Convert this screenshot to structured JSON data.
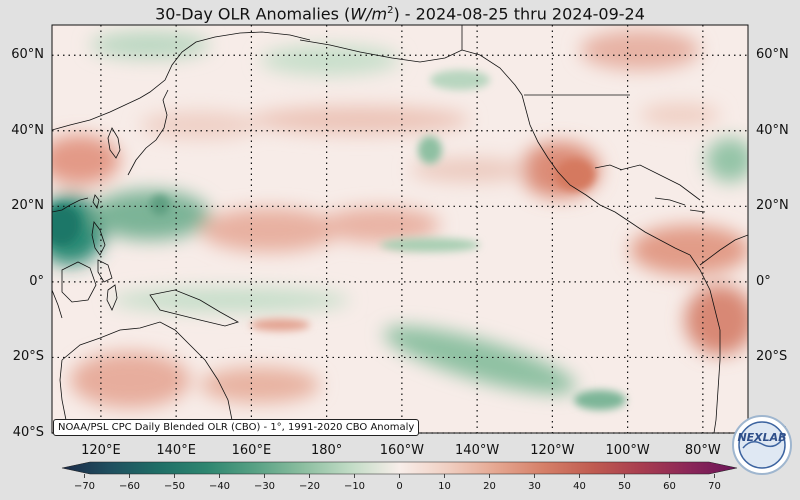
{
  "title": {
    "prefix": "30-Day OLR Anomalies (",
    "unit_base": "W/m",
    "unit_exp": "2",
    "suffix": ") - 2024-08-25 thru 2024-09-24"
  },
  "lat_labels": [
    "60°N",
    "40°N",
    "20°N",
    "0°",
    "20°S",
    "40°S"
  ],
  "lon_labels": [
    "120°E",
    "140°E",
    "160°E",
    "180°",
    "160°W",
    "140°W",
    "120°W",
    "100°W",
    "80°W"
  ],
  "source_note": "NOAA/PSL CPC Daily Blended OLR (CBO) - 1°, 1991-2020 CBO Anomaly",
  "logo_text": "NEXLAB",
  "colorbar": {
    "ticks": [
      "−70",
      "−60",
      "−50",
      "−40",
      "−30",
      "−20",
      "−10",
      "0",
      "10",
      "20",
      "30",
      "40",
      "50",
      "60",
      "70"
    ],
    "min": -75,
    "max": 75,
    "colors": [
      "#1b2a48",
      "#1f4f5f",
      "#1f6e66",
      "#2e8670",
      "#58a184",
      "#8cbea0",
      "#c2dcc6",
      "#f8eeea",
      "#f0cfc2",
      "#e5a791",
      "#d57f68",
      "#c05c51",
      "#a83d4f",
      "#8b2658",
      "#6a1458"
    ]
  },
  "map_data": {
    "lat_range": [
      -40,
      68
    ],
    "lon_range": [
      107,
      292
    ],
    "lat_lines": [
      60,
      40,
      20,
      0,
      -20,
      -40
    ],
    "lon_lines": [
      120,
      140,
      160,
      180,
      200,
      220,
      240,
      260,
      280
    ]
  }
}
